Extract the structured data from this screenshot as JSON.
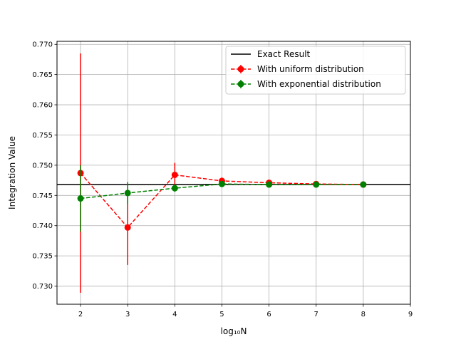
{
  "chart_data": {
    "type": "line",
    "xlabel": "log₁₀N",
    "ylabel": "Integration Value",
    "xlim": [
      1.5,
      9
    ],
    "ylim": [
      0.727,
      0.7705
    ],
    "xticks": [
      2,
      3,
      4,
      5,
      6,
      7,
      8,
      9
    ],
    "yticks": [
      0.73,
      0.735,
      0.74,
      0.745,
      0.75,
      0.755,
      0.76,
      0.765,
      0.77
    ],
    "grid": true,
    "legend_position": "top-right",
    "exact": {
      "name": "Exact Result",
      "value": 0.74682,
      "color": "#000000"
    },
    "series": [
      {
        "name": "With uniform distribution",
        "color": "#ff0000",
        "x": [
          2,
          3,
          4,
          5,
          6,
          7,
          8
        ],
        "y": [
          0.7487,
          0.7397,
          0.7484,
          0.7474,
          0.7471,
          0.7469,
          0.7468
        ],
        "yerr": [
          0.0198,
          0.0062,
          0.002,
          0.0006,
          0.0002,
          0.0001,
          2e-05
        ]
      },
      {
        "name": "With exponential distribution",
        "color": "#008000",
        "x": [
          2,
          3,
          4,
          5,
          6,
          7,
          8
        ],
        "y": [
          0.7445,
          0.7454,
          0.7462,
          0.7469,
          0.7468,
          0.7468,
          0.7468
        ],
        "yerr": [
          0.0055,
          0.0018,
          0.0006,
          0.0002,
          6e-05,
          2e-05,
          6e-06
        ]
      }
    ]
  }
}
